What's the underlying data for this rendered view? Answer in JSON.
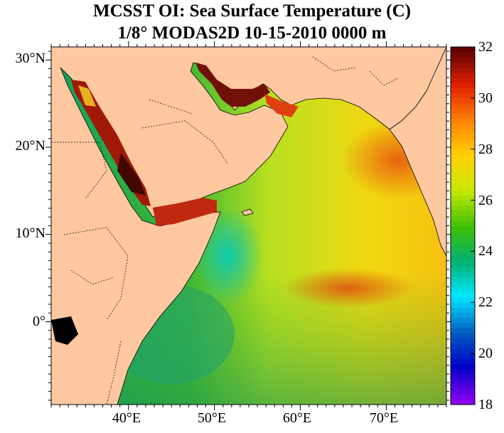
{
  "title": {
    "line1": "MCSST OI:  Sea Surface Temperature (C)",
    "line2": "1/8° MODAS2D 10-15-2010 0000 m"
  },
  "axes": {
    "lat_ticks": [
      "30°N",
      "20°N",
      "10°N",
      "0°"
    ],
    "lon_ticks": [
      "40°E",
      "50°E",
      "60°E",
      "70°E"
    ],
    "lat_range": [
      -9.5,
      31.5
    ],
    "lon_range": [
      31.0,
      77.0
    ]
  },
  "colorbar": {
    "min": 18,
    "max": 32,
    "tick_labels": [
      "32",
      "30",
      "28",
      "26",
      "24",
      "22",
      "20",
      "18"
    ],
    "colors": [
      "#9000f0",
      "#0000c8",
      "#0060c0",
      "#00e8ff",
      "#00b070",
      "#40c000",
      "#c8e800",
      "#ffd000",
      "#ff8000",
      "#e02000",
      "#600000"
    ]
  },
  "map_colors": {
    "land": "#ffc8a0",
    "border": "#000000"
  }
}
